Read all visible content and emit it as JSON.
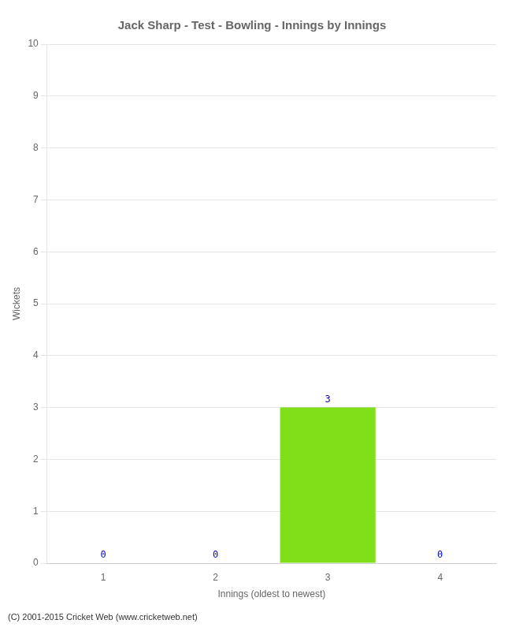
{
  "chart_data": {
    "type": "bar",
    "title": "Jack Sharp - Test - Bowling - Innings by Innings",
    "x_label": "Innings (oldest to newest)",
    "y_label": "Wickets",
    "categories": [
      1,
      2,
      3,
      4
    ],
    "values": [
      0,
      0,
      3,
      0
    ],
    "colors": [
      "#ffffff",
      "#ffffff",
      "#7FE01A",
      "#ffffff"
    ],
    "ylim": [
      0,
      10
    ],
    "yticks": [
      0,
      1,
      2,
      3,
      4,
      5,
      6,
      7,
      8,
      9,
      10
    ],
    "grid": true,
    "data_labels": true,
    "annotations": [
      "(C) 2001-2015 Cricket Web (www.cricketweb.net)"
    ]
  }
}
